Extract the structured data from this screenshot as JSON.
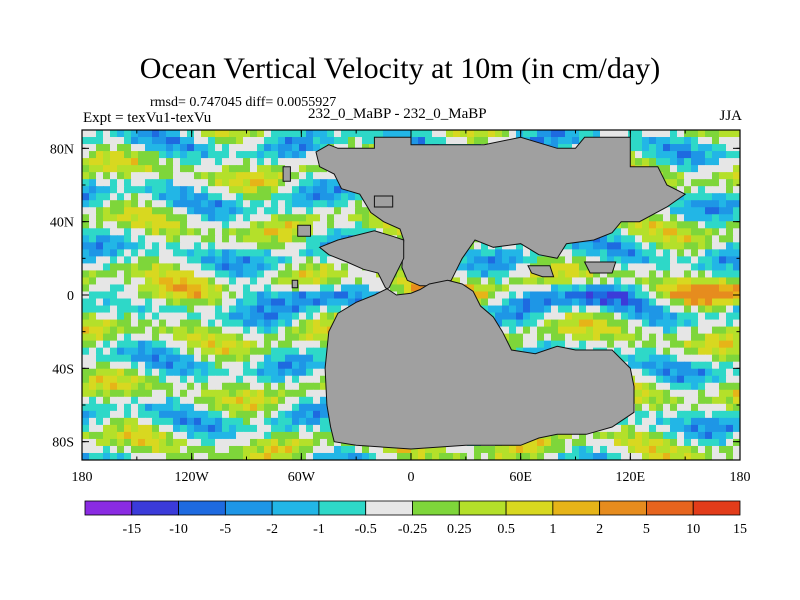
{
  "chart_data": {
    "type": "heatmap",
    "title": "Ocean Vertical Velocity at 10m (in cm/day)",
    "stats": "rmsd= 0.747045 diff= 0.0055927",
    "experiment": "Expt = texVu1-texVu",
    "subtitle": "232_0_MaBP - 232_0_MaBP",
    "season": "JJA",
    "x_ticks": [
      "180",
      "120W",
      "60W",
      "0",
      "60E",
      "120E",
      "180"
    ],
    "y_ticks": [
      "80N",
      "40N",
      "0",
      "40S",
      "80S"
    ],
    "xlim": [
      -180,
      180
    ],
    "ylim": [
      -90,
      90
    ],
    "colorbar_labels": [
      "-15",
      "-10",
      "-5",
      "-2",
      "-1",
      "-0.5",
      "-0.25",
      "0.25",
      "0.5",
      "1",
      "2",
      "5",
      "10",
      "15"
    ],
    "colorbar_colors": [
      "#8a2be2",
      "#3b3bd9",
      "#1e6ae0",
      "#1e96e6",
      "#22b6e6",
      "#2ed8c8",
      "#e6e6e6",
      "#7ed63a",
      "#b4e02a",
      "#d8d820",
      "#e6b418",
      "#e68c1e",
      "#e6641e",
      "#e23c1a"
    ],
    "land_color": "#a0a0a0"
  }
}
